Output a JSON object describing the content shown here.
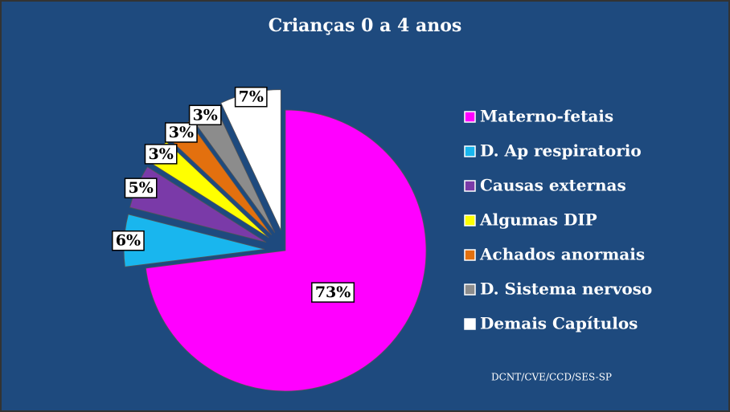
{
  "chart_data": {
    "type": "pie",
    "title": "Crianças 0 a 4 anos",
    "categories": [
      "Materno-fetais",
      "D. Ap respiratorio",
      "Causas externas",
      "Algumas DIP",
      "Achados anormais",
      "D. Sistema nervoso",
      "Demais Capítulos"
    ],
    "values": [
      73,
      6,
      5,
      3,
      3,
      3,
      7
    ],
    "value_labels": [
      "73%",
      "6%",
      "5%",
      "3%",
      "3%",
      "3%",
      "7%"
    ],
    "colors": [
      "#ff00ff",
      "#19b6ee",
      "#7a3aa8",
      "#ffff00",
      "#e3700e",
      "#8c8c8c",
      "#ffffff"
    ],
    "legend": "right",
    "source": "DCNT/CVE/CCD/SES-SP"
  }
}
